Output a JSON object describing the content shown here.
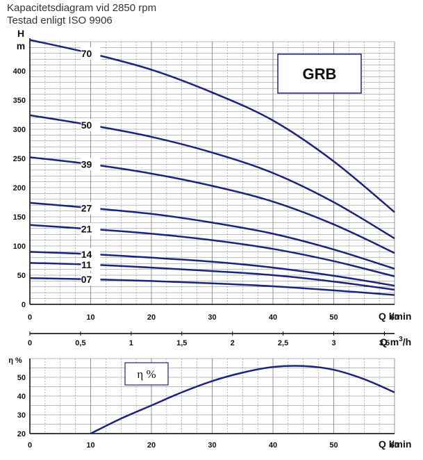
{
  "header": {
    "title": "Kapacitetsdiagram vid 2850 rpm",
    "subtitle": "Testad enligt ISO 9906"
  },
  "colors": {
    "curve": "#1a237e",
    "grid": "#777777",
    "box_border": "#1a237e"
  },
  "chart_data": [
    {
      "type": "line",
      "title": "GRB",
      "xlabel": "Q l/min",
      "ylabel": "H m",
      "xlim": [
        0,
        60
      ],
      "ylim": [
        0,
        450
      ],
      "xticks": [
        0,
        10,
        20,
        30,
        40,
        50,
        60
      ],
      "yticks": [
        0,
        50,
        100,
        150,
        200,
        250,
        300,
        350,
        400
      ],
      "secondary_axis": {
        "label": "Q m³/h",
        "label_main": "Q m",
        "label_sup": "3",
        "label_tail": "/h",
        "ticks": [
          "0",
          "0,5",
          "1",
          "1,5",
          "2",
          "2,5",
          "3",
          "3,5"
        ]
      },
      "grid": true,
      "series": [
        {
          "name": "70",
          "x": [
            0,
            10,
            20,
            30,
            40,
            50,
            60
          ],
          "values": [
            453,
            430,
            402,
            363,
            315,
            245,
            158
          ]
        },
        {
          "name": "50",
          "x": [
            0,
            10,
            20,
            30,
            40,
            50,
            60
          ],
          "values": [
            324,
            307,
            287,
            260,
            225,
            175,
            113
          ]
        },
        {
          "name": "39",
          "x": [
            0,
            10,
            20,
            30,
            40,
            50,
            60
          ],
          "values": [
            252,
            240,
            224,
            203,
            176,
            137,
            88
          ]
        },
        {
          "name": "27",
          "x": [
            0,
            10,
            20,
            30,
            40,
            50,
            60
          ],
          "values": [
            174,
            165,
            155,
            140,
            121,
            94,
            61
          ]
        },
        {
          "name": "21",
          "x": [
            0,
            10,
            20,
            30,
            40,
            50,
            60
          ],
          "values": [
            136,
            129,
            121,
            110,
            95,
            74,
            48
          ]
        },
        {
          "name": "14",
          "x": [
            0,
            10,
            20,
            30,
            40,
            50,
            60
          ],
          "values": [
            90,
            86,
            80,
            73,
            63,
            49,
            32
          ]
        },
        {
          "name": "11",
          "x": [
            0,
            10,
            20,
            30,
            40,
            50,
            60
          ],
          "values": [
            71,
            68,
            63,
            57,
            50,
            39,
            25
          ]
        },
        {
          "name": "07",
          "x": [
            0,
            10,
            20,
            30,
            40,
            50,
            60
          ],
          "values": [
            45,
            43,
            40,
            36,
            31,
            24,
            16
          ]
        }
      ]
    },
    {
      "type": "line",
      "title": "η %",
      "xlabel": "Q l/min",
      "ylabel": "η %",
      "xlim": [
        0,
        60
      ],
      "ylim": [
        20,
        60
      ],
      "xticks": [
        0,
        10,
        20,
        30,
        40,
        50,
        60
      ],
      "yticks": [
        20,
        30,
        40,
        50
      ],
      "grid": true,
      "series": [
        {
          "name": "η %",
          "x": [
            10,
            15,
            20,
            25,
            30,
            35,
            40,
            45,
            50,
            55,
            60
          ],
          "values": [
            20,
            28,
            35,
            42,
            48,
            52.5,
            55.5,
            56,
            54,
            49,
            42
          ]
        }
      ]
    }
  ]
}
